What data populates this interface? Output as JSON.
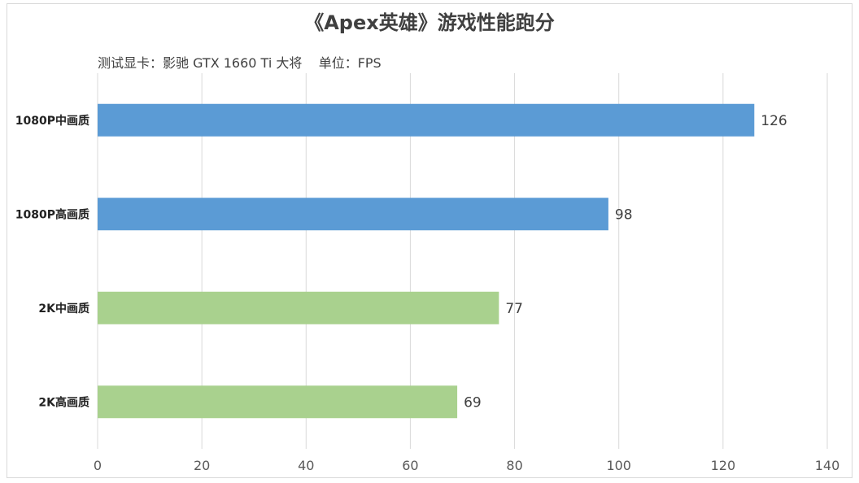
{
  "title": "《Apex英雄》游戏性能跑分",
  "subtitle": "测试显卡：影驰 GTX 1660 Ti 大将    单位：FPS",
  "colors": {
    "blue": "#5b9bd5",
    "green": "#a9d18e",
    "grid": "#d9d9d9"
  },
  "chart_data": {
    "type": "bar",
    "orientation": "horizontal",
    "title": "《Apex英雄》游戏性能跑分",
    "categories": [
      "1080P中画质",
      "1080P高画质",
      "2K中画质",
      "2K高画质"
    ],
    "values": [
      126,
      98,
      77,
      69
    ],
    "bar_colors": [
      "#5b9bd5",
      "#5b9bd5",
      "#a9d18e",
      "#a9d18e"
    ],
    "xlim": [
      0,
      140
    ],
    "xticks": [
      0,
      20,
      40,
      60,
      80,
      100,
      120,
      140
    ],
    "grid": true
  }
}
